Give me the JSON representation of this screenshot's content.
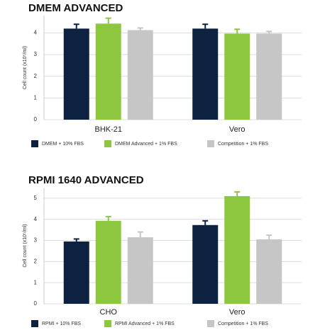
{
  "charts": [
    {
      "type": "bar",
      "title": "DMEM ADVANCED",
      "y_label": "Cell count (x10⁵/ml)",
      "categories": [
        "BHK-21",
        "Vero"
      ],
      "series": [
        {
          "name": "DMEM + 10% FBS",
          "color": "#0d2240",
          "values": [
            4.2,
            4.2
          ],
          "errors": [
            0.2,
            0.2
          ]
        },
        {
          "name": "DMEM Advanced + 1% FBS",
          "color": "#8dc63f",
          "values": [
            4.43,
            3.97
          ],
          "errors": [
            0.25,
            0.2
          ]
        },
        {
          "name": "Competition + 1% FBS",
          "color": "#c6c6c6",
          "values": [
            4.13,
            3.97
          ],
          "errors": [
            0.1,
            0.1
          ]
        }
      ],
      "ylim": [
        0,
        4.8
      ],
      "yticks": [
        0,
        1,
        2,
        3,
        4
      ],
      "grid": true
    },
    {
      "type": "bar",
      "title": "RPMI 1640 ADVANCED",
      "y_label": "Cell count (x10⁵/ml)",
      "categories": [
        "CHO",
        "Vero"
      ],
      "series": [
        {
          "name": "RPMI + 10% FBS",
          "color": "#0d2240",
          "values": [
            2.95,
            3.73
          ],
          "errors": [
            0.12,
            0.2
          ]
        },
        {
          "name": "RPMI Advanced + 1% FBS",
          "color": "#8dc63f",
          "values": [
            3.93,
            5.1
          ],
          "errors": [
            0.2,
            0.2
          ]
        },
        {
          "name": "Competition + 1% FBS",
          "color": "#c6c6c6",
          "values": [
            3.15,
            3.05
          ],
          "errors": [
            0.25,
            0.2
          ]
        }
      ],
      "ylim": [
        0,
        5.5
      ],
      "yticks": [
        0,
        1,
        2,
        3,
        4,
        5
      ],
      "grid": true
    }
  ]
}
